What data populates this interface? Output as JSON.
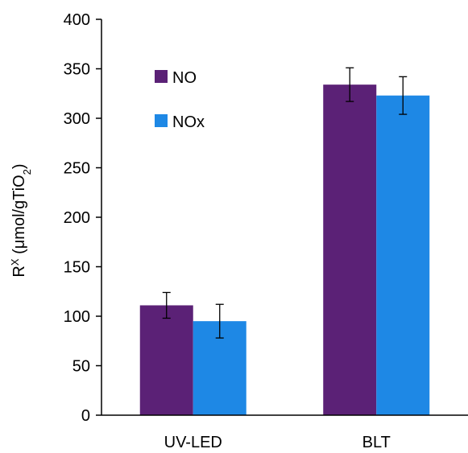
{
  "chart_data": {
    "type": "bar",
    "categories": [
      "UV-LED",
      "BLT"
    ],
    "series": [
      {
        "name": "NO",
        "values": [
          111,
          334
        ],
        "errors": [
          13,
          17
        ],
        "color": "#5b2176"
      },
      {
        "name": "NOx",
        "values": [
          95,
          323
        ],
        "errors": [
          17,
          19
        ],
        "color": "#1e88e5"
      }
    ],
    "ylabel": {
      "base": "R",
      "sup": "X",
      "middle": " (μmol/gTiO",
      "sub": "2",
      "end": ")"
    },
    "ylim": [
      0,
      400
    ],
    "yticks": [
      "0",
      "50",
      "100",
      "150",
      "200",
      "250",
      "300",
      "350",
      "400"
    ],
    "grid": false,
    "legend_position": "top-left"
  }
}
